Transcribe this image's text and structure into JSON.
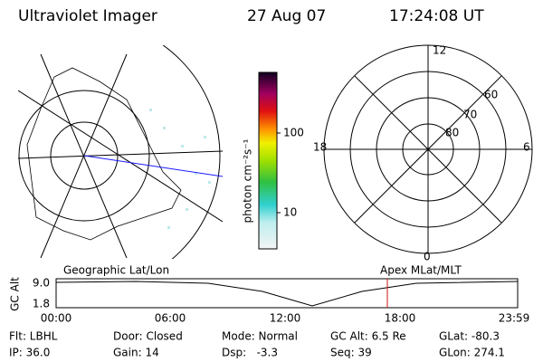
{
  "header": {
    "title": "Ultraviolet Imager",
    "date": "27 Aug 07",
    "time": "17:24:08 UT"
  },
  "colorbar": {
    "label": "photon cm⁻²s⁻¹",
    "ticks": [
      "100",
      "10"
    ]
  },
  "polar_plot": {
    "mlt_top": "12",
    "mlt_left": "18",
    "mlt_right": "6",
    "mlt_bottom": "0",
    "lat_60": "60",
    "lat_70": "70",
    "lat_80": "80"
  },
  "timeline": {
    "left_title": "Geographic Lat/Lon",
    "right_title": "Apex MLat/MLT",
    "axis_label": "GC Alt",
    "y_labels": [
      "9.0",
      "1.8"
    ],
    "x_labels": [
      "00:00",
      "06:00",
      "12:00",
      "18:00",
      "23:59"
    ]
  },
  "footer": {
    "rows": [
      [
        "Flt: LBHL",
        "Door: Closed",
        "Mode: Normal",
        "GC Alt: 6.5 Re",
        "GLat: -80.3"
      ],
      [
        "IP: 36.0",
        "Gain: 14",
        "Dsp:   -3.3",
        "Seq: 39",
        "GLon: 274.1"
      ]
    ]
  }
}
